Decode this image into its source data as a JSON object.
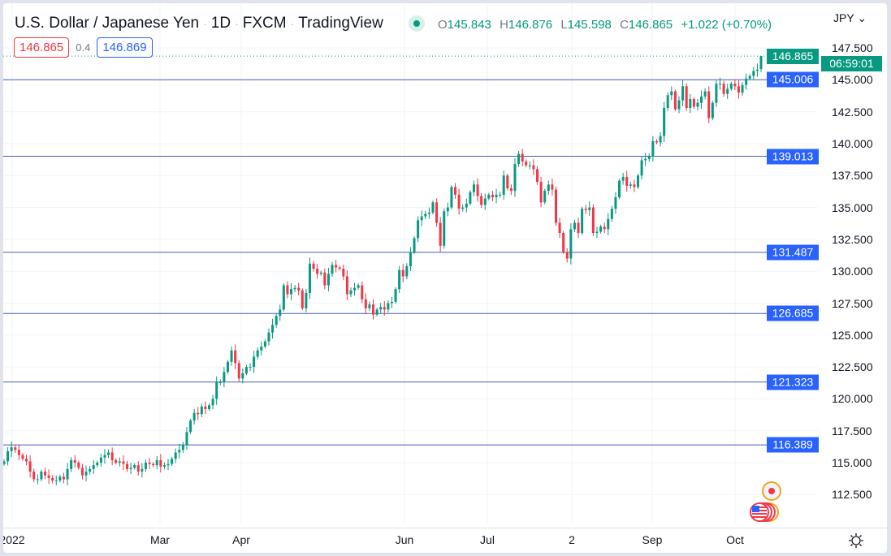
{
  "header": {
    "symbol_name": "U.S. Dollar / Japanese Yen",
    "interval": "1D",
    "exchange": "FXCM",
    "source": "TradingView",
    "ohlc": {
      "o_label": "O",
      "o": "145.843",
      "h_label": "H",
      "h": "146.876",
      "l_label": "L",
      "l": "145.598",
      "c_label": "C",
      "c": "146.865",
      "change": "+1.022 (+0.70%)"
    },
    "sell_price": "146.865",
    "spread": "0.4",
    "buy_price": "146.869",
    "currency": "JPY"
  },
  "price_label": {
    "price": "146.865",
    "countdown": "06:59:01"
  },
  "colors": {
    "up": "#089981",
    "down": "#f23645",
    "level_line": "#2962ff",
    "grid": "#f0f3fa"
  },
  "icons": {
    "live": "status-dot-icon",
    "settings": "gear-icon",
    "event": "us-flag-event-icon",
    "dividend": "event-dot-icon"
  },
  "chart_data": {
    "type": "candlestick",
    "title": "U.S. Dollar / Japanese Yen · 1D · FXCM",
    "ylim": [
      111.5,
      148.5
    ],
    "y_ticks": [
      "147.500",
      "145.000",
      "142.500",
      "140.000",
      "137.500",
      "135.000",
      "132.500",
      "130.000",
      "127.500",
      "125.000",
      "122.500",
      "120.000",
      "117.500",
      "115.000",
      "112.500"
    ],
    "x_ticks": [
      "2022",
      "Mar",
      "Apr",
      "Jun",
      "Jul",
      "2",
      "Sep",
      "Oct"
    ],
    "grid": true,
    "last_bar": {
      "open": 145.843,
      "high": 146.876,
      "low": 145.598,
      "close": 146.865
    },
    "horizontal_levels": [
      "145.006",
      "139.013",
      "131.487",
      "126.685",
      "121.323",
      "116.389"
    ],
    "closes": [
      115.1,
      115.9,
      116.2,
      116.0,
      115.6,
      115.3,
      115.1,
      114.3,
      113.7,
      113.7,
      114.3,
      114.0,
      113.8,
      113.6,
      113.6,
      113.9,
      113.7,
      114.5,
      115.2,
      115.0,
      114.6,
      114.0,
      114.3,
      114.5,
      114.8,
      115.0,
      115.4,
      115.6,
      115.8,
      115.2,
      115.0,
      115.1,
      114.9,
      114.5,
      114.6,
      114.8,
      114.3,
      114.5,
      115.0,
      114.9,
      114.8,
      115.2,
      114.7,
      114.8,
      114.9,
      115.3,
      115.8,
      116.0,
      116.4,
      117.4,
      118.3,
      118.9,
      118.8,
      119.4,
      119.2,
      119.5,
      120.0,
      121.3,
      121.3,
      122.1,
      122.9,
      123.8,
      122.8,
      121.6,
      122.0,
      122.5,
      122.5,
      123.3,
      123.8,
      124.1,
      124.5,
      125.2,
      125.8,
      126.5,
      127.0,
      128.9,
      128.2,
      128.6,
      128.7,
      128.5,
      127.1,
      128.3,
      130.6,
      130.2,
      129.8,
      129.9,
      128.9,
      129.8,
      130.5,
      130.3,
      130.2,
      129.6,
      128.2,
      128.5,
      128.7,
      128.9,
      127.8,
      127.1,
      127.4,
      126.6,
      127.0,
      127.2,
      127.0,
      127.5,
      127.6,
      128.6,
      130.1,
      129.6,
      130.4,
      131.5,
      132.6,
      134.0,
      134.3,
      134.5,
      134.6,
      135.4,
      133.8,
      132.0,
      134.7,
      135.0,
      136.6,
      136.0,
      134.9,
      135.0,
      135.3,
      136.2,
      136.8,
      135.9,
      135.2,
      135.7,
      136.0,
      135.8,
      136.0,
      136.0,
      137.5,
      136.5,
      136.3,
      138.4,
      139.2,
      138.6,
      138.3,
      138.3,
      138.0,
      137.0,
      135.4,
      136.3,
      136.8,
      136.4,
      133.8,
      133.0,
      131.5,
      131.0,
      133.3,
      133.8,
      133.0,
      134.9,
      134.8,
      135.0,
      133.0,
      133.1,
      133.5,
      133.3,
      134.1,
      134.9,
      135.8,
      137.1,
      137.4,
      136.7,
      136.8,
      136.6,
      137.5,
      138.7,
      138.8,
      139.0,
      140.2,
      140.1,
      140.6,
      142.8,
      143.8,
      144.1,
      142.7,
      143.4,
      144.5,
      142.8,
      143.5,
      142.9,
      143.2,
      143.7,
      144.1,
      142.0,
      143.2,
      144.7,
      144.7,
      143.9,
      144.3,
      144.7,
      144.5,
      144.0,
      144.6,
      145.1,
      145.3,
      145.7,
      145.8,
      146.865
    ]
  }
}
